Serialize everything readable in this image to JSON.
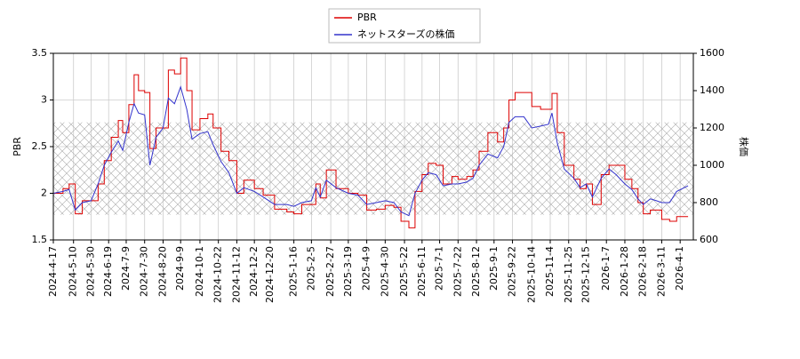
{
  "chart_data": {
    "type": "line",
    "xlabel_none": null,
    "ylabel": "PBR",
    "y2label": "株価",
    "x": [
      "2024-4-17",
      "2024-4-28",
      "2024-5-5",
      "2024-5-12",
      "2024-5-20",
      "2024-5-30",
      "2024-6-7",
      "2024-6-14",
      "2024-6-22",
      "2024-6-30",
      "2024-7-5",
      "2024-7-12",
      "2024-7-18",
      "2024-7-23",
      "2024-7-30",
      "2024-8-5",
      "2024-8-12",
      "2024-8-20",
      "2024-8-26",
      "2024-9-2",
      "2024-9-9",
      "2024-9-16",
      "2024-9-22",
      "2024-10-1",
      "2024-10-10",
      "2024-10-16",
      "2024-10-25",
      "2024-11-3",
      "2024-11-12",
      "2024-11-20",
      "2024-12-2",
      "2024-12-12",
      "2024-12-25",
      "2025-1-8",
      "2025-1-16",
      "2025-1-25",
      "2025-2-5",
      "2025-2-10",
      "2025-2-15",
      "2025-2-22",
      "2025-3-5",
      "2025-3-19",
      "2025-3-30",
      "2025-4-9",
      "2025-4-20",
      "2025-4-30",
      "2025-5-10",
      "2025-5-18",
      "2025-5-27",
      "2025-6-3",
      "2025-6-11",
      "2025-6-18",
      "2025-6-27",
      "2025-7-5",
      "2025-7-15",
      "2025-7-22",
      "2025-8-1",
      "2025-8-8",
      "2025-8-15",
      "2025-8-25",
      "2025-9-5",
      "2025-9-12",
      "2025-9-18",
      "2025-9-25",
      "2025-10-5",
      "2025-10-14",
      "2025-10-24",
      "2025-11-2",
      "2025-11-6",
      "2025-11-12",
      "2025-11-20",
      "2025-12-1",
      "2025-12-8",
      "2025-12-15",
      "2025-12-22",
      "2026-1-1",
      "2026-1-10",
      "2026-1-18",
      "2026-1-28",
      "2026-2-5",
      "2026-2-12",
      "2026-2-18",
      "2026-2-26",
      "2026-3-5",
      "2026-3-11",
      "2026-3-20",
      "2026-3-28",
      "2026-4-10"
    ],
    "series": [
      {
        "name": "PBR",
        "color": "#dd0000",
        "drawstyle": "steps-post",
        "values": [
          2.0,
          2.05,
          2.1,
          1.78,
          1.92,
          1.92,
          2.1,
          2.35,
          2.6,
          2.78,
          2.65,
          2.95,
          3.27,
          3.1,
          3.08,
          2.48,
          2.7,
          2.7,
          3.32,
          3.28,
          3.45,
          3.1,
          2.68,
          2.8,
          2.85,
          2.7,
          2.45,
          2.35,
          2.0,
          2.14,
          2.05,
          1.98,
          1.83,
          1.8,
          1.78,
          1.88,
          1.88,
          2.1,
          1.95,
          2.25,
          2.05,
          2.0,
          1.98,
          1.82,
          1.83,
          1.87,
          1.85,
          1.7,
          1.63,
          2.02,
          2.2,
          2.32,
          2.3,
          2.1,
          2.18,
          2.15,
          2.18,
          2.25,
          2.45,
          2.65,
          2.55,
          2.7,
          3.0,
          3.08,
          3.08,
          2.93,
          2.9,
          2.9,
          3.07,
          2.65,
          2.3,
          2.15,
          2.05,
          2.1,
          1.88,
          2.2,
          2.3,
          2.3,
          2.15,
          2.05,
          1.9,
          1.78,
          1.82,
          1.82,
          1.72,
          1.7,
          1.75,
          1.75
        ]
      },
      {
        "name": "ネットスターズの株価",
        "color": "#3333cc",
        "axis": "y2",
        "values": [
          850,
          860,
          870,
          760,
          800,
          810,
          900,
          1000,
          1070,
          1130,
          1080,
          1230,
          1330,
          1280,
          1270,
          1000,
          1150,
          1200,
          1360,
          1330,
          1420,
          1300,
          1140,
          1170,
          1180,
          1110,
          1020,
          960,
          850,
          880,
          860,
          830,
          790,
          790,
          780,
          800,
          810,
          880,
          830,
          920,
          880,
          850,
          840,
          790,
          800,
          810,
          800,
          750,
          730,
          850,
          920,
          960,
          950,
          890,
          900,
          900,
          910,
          930,
          1000,
          1060,
          1040,
          1100,
          1230,
          1260,
          1260,
          1200,
          1210,
          1220,
          1280,
          1120,
          980,
          930,
          880,
          900,
          830,
          930,
          980,
          950,
          900,
          870,
          820,
          790,
          820,
          810,
          800,
          800,
          860,
          890
        ]
      }
    ],
    "xlim": [
      "2024-4-17",
      "2026-4-16"
    ],
    "xticks": [
      "2024-4-17",
      "2024-5-10",
      "2024-5-30",
      "2024-6-19",
      "2024-7-9",
      "2024-7-30",
      "2024-8-20",
      "2024-9-9",
      "2024-10-1",
      "2024-10-22",
      "2024-11-12",
      "2024-12-2",
      "2024-12-20",
      "2025-1-16",
      "2025-2-5",
      "2025-2-27",
      "2025-3-19",
      "2025-4-9",
      "2025-4-30",
      "2025-5-22",
      "2025-6-11",
      "2025-7-1",
      "2025-7-22",
      "2025-8-12",
      "2025-9-1",
      "2025-9-22",
      "2025-10-14",
      "2025-11-4",
      "2025-11-25",
      "2025-12-15",
      "2026-1-7",
      "2026-1-28",
      "2026-2-18",
      "2026-3-11",
      "2026-4-1"
    ],
    "ylim": [
      1.5,
      3.5
    ],
    "yticks": [
      1.5,
      2.0,
      2.5,
      3.0,
      3.5
    ],
    "y2lim": [
      600,
      1600
    ],
    "y2ticks": [
      600,
      800,
      1000,
      1200,
      1400,
      1600
    ],
    "band_ylim": [
      1.77,
      2.76
    ],
    "grid": true
  }
}
